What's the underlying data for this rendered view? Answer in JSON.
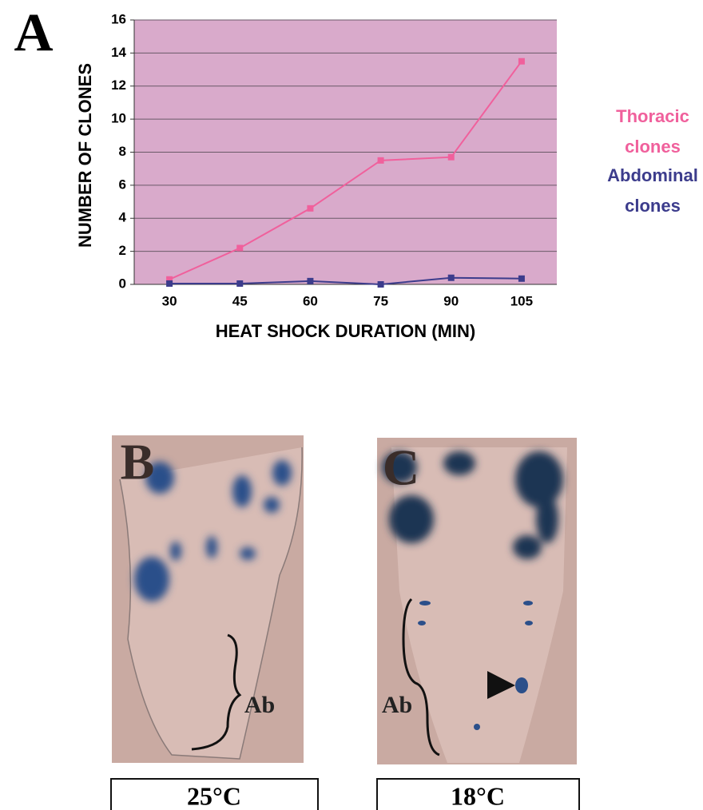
{
  "chart_data": {
    "type": "line",
    "x_label": "HEAT SHOCK DURATION (MIN)",
    "y_label": "NUMBER OF CLONES",
    "categories": [
      "30",
      "45",
      "60",
      "75",
      "90",
      "105"
    ],
    "series": [
      {
        "name": "Thoracic clones",
        "color": "#f0609c",
        "values": [
          0.3,
          2.2,
          4.6,
          7.5,
          7.7,
          13.5
        ]
      },
      {
        "name": "Abdominal clones",
        "color": "#3c3c8c",
        "values": [
          0.05,
          0.05,
          0.2,
          0,
          0.4,
          0.35
        ]
      }
    ],
    "ylim": [
      0,
      16
    ],
    "yticks": [
      0,
      2,
      4,
      6,
      8,
      10,
      12,
      14,
      16
    ],
    "grid": true,
    "legend": "right"
  },
  "panels": {
    "a": "A",
    "b": "B",
    "c": "C",
    "b_region": "Ab",
    "c_region": "Ab",
    "b_temp": "25°C",
    "c_temp": "18°C"
  }
}
